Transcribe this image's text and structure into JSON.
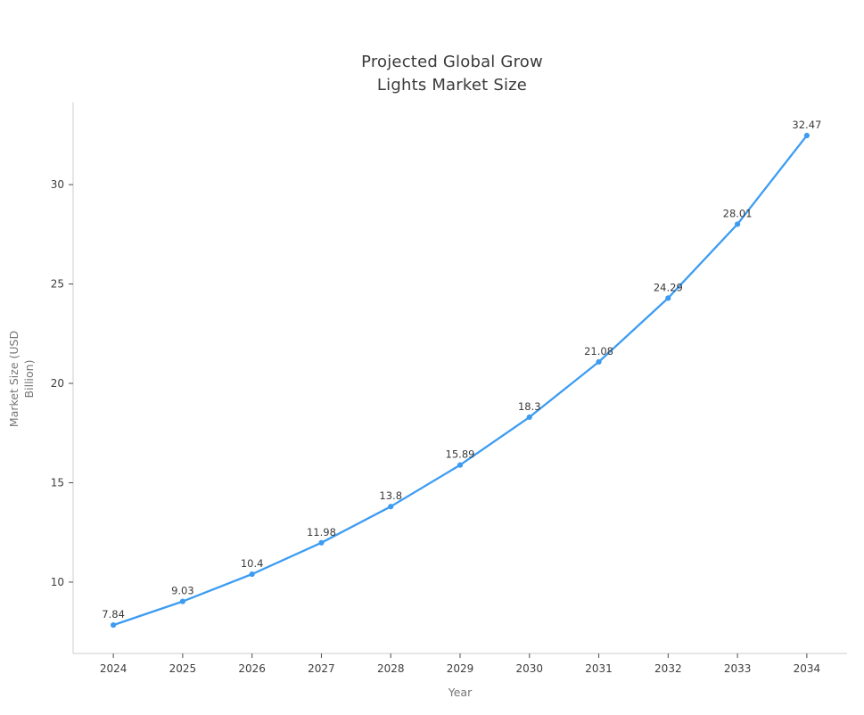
{
  "title": {
    "line1": "Projected Global Grow",
    "line2": "Lights Market Size"
  },
  "chart_data": {
    "type": "line",
    "title": "Projected Global Grow Lights Market Size",
    "xlabel": "Year",
    "ylabel": "Market Size (USD Billion)",
    "ylabel_lines": [
      "Market Size (USD",
      "Billion)"
    ],
    "x": [
      2024,
      2025,
      2026,
      2027,
      2028,
      2029,
      2030,
      2031,
      2032,
      2033,
      2034
    ],
    "values": [
      7.84,
      9.03,
      10.4,
      11.98,
      13.8,
      15.89,
      18.3,
      21.08,
      24.29,
      28.01,
      32.47
    ],
    "point_labels": [
      "7.84",
      "9.03",
      "10.4",
      "11.98",
      "13.8",
      "15.89",
      "18.3",
      "21.08",
      "24.29",
      "28.01",
      "32.47"
    ],
    "xticks": [
      "2024",
      "2025",
      "2026",
      "2027",
      "2028",
      "2029",
      "2030",
      "2031",
      "2032",
      "2033",
      "2034"
    ],
    "yticks": [
      10,
      15,
      20,
      25,
      30
    ],
    "xlim": [
      2023.42,
      2034.58
    ],
    "ylim": [
      6.41,
      34.13
    ],
    "grid": false,
    "legend": null,
    "series_name": "Market Size (USD Billion)"
  },
  "colors": {
    "line": "#3d9cf2",
    "marker": "#3d9cf2",
    "title_text": "#3a3a3a",
    "tick_text": "#3d3d3d",
    "axis_title_text": "#757575",
    "spine": "#d6d6d6",
    "tick_mark": "#4d4d4d",
    "background": "#ffffff"
  }
}
